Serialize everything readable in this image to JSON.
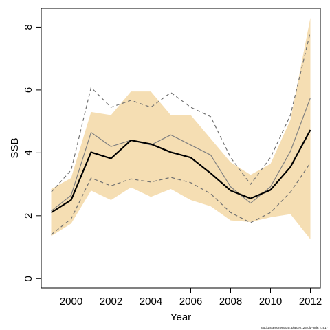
{
  "chart_data": {
    "type": "line",
    "xlabel": "Year",
    "ylabel": "SSB",
    "xlim": [
      1998.5,
      2012.5
    ],
    "ylim": [
      -0.3,
      8.6
    ],
    "x_ticks": [
      2000,
      2002,
      2004,
      2006,
      2008,
      2010,
      2012
    ],
    "y_ticks": [
      0,
      2,
      4,
      6,
      8
    ],
    "grid": false,
    "legend": "none",
    "x": [
      1999,
      2000,
      2001,
      2002,
      2003,
      2004,
      2005,
      2006,
      2007,
      2008,
      2009,
      2010,
      2011,
      2012
    ],
    "band": {
      "color": "#f5deb3",
      "lower": [
        1.35,
        1.75,
        2.8,
        2.5,
        2.9,
        2.6,
        2.85,
        2.5,
        2.3,
        1.85,
        1.8,
        1.95,
        2.05,
        1.25
      ],
      "upper": [
        2.85,
        3.2,
        5.3,
        5.2,
        5.95,
        5.95,
        5.2,
        5.2,
        4.45,
        3.7,
        3.3,
        3.65,
        5.05,
        8.3
      ]
    },
    "series": [
      {
        "style": "solid-bold",
        "color": "#000000",
        "values": [
          2.1,
          2.5,
          4.02,
          3.82,
          4.4,
          4.28,
          4.02,
          3.85,
          3.35,
          2.8,
          2.55,
          2.82,
          3.55,
          4.73
        ]
      },
      {
        "style": "solid-thin",
        "color": "#808080",
        "values": [
          2.15,
          2.65,
          4.65,
          4.2,
          4.4,
          4.25,
          4.57,
          4.25,
          3.93,
          2.92,
          2.4,
          2.92,
          4.05,
          5.75
        ]
      },
      {
        "style": "dashed-upper",
        "color": "#707070",
        "values": [
          2.75,
          3.45,
          6.08,
          5.45,
          5.67,
          5.45,
          5.92,
          5.45,
          5.15,
          3.85,
          3.0,
          3.85,
          5.2,
          7.85
        ]
      },
      {
        "style": "dashed-lower",
        "color": "#707070",
        "values": [
          1.4,
          1.9,
          3.2,
          2.95,
          3.17,
          3.07,
          3.22,
          3.05,
          2.7,
          2.1,
          1.78,
          2.1,
          2.75,
          3.68
        ]
      }
    ],
    "credit": "stockassessment.org, plaice2123-old-indF, r1917"
  }
}
